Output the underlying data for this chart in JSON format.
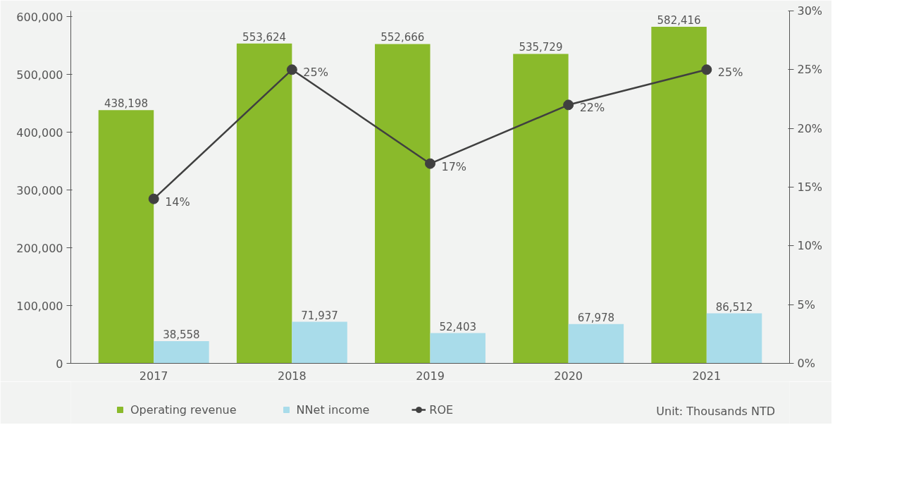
{
  "chart_data": {
    "type": "bar",
    "categories": [
      "2017",
      "2018",
      "2019",
      "2020",
      "2021"
    ],
    "series": [
      {
        "name": "Operating revenue",
        "color": "#8aba2b",
        "values": [
          438198,
          553624,
          552666,
          535729,
          582416
        ],
        "value_labels": [
          "438,198",
          "553,624",
          "552,666",
          "535,729",
          "582,416"
        ]
      },
      {
        "name": "NNet income",
        "color": "#a9dcea",
        "values": [
          38558,
          71937,
          52403,
          67978,
          86512
        ],
        "value_labels": [
          "38,558",
          "71,937",
          "52,403",
          "67,978",
          "86,512"
        ]
      },
      {
        "name": "ROE",
        "type": "line",
        "axis": "y2",
        "color": "#404040",
        "marker": "circle",
        "values": [
          14,
          25,
          17,
          22,
          25
        ],
        "value_labels": [
          "14%",
          "25%",
          "17%",
          "22%",
          "25%"
        ]
      }
    ],
    "ylim": [
      0,
      610000
    ],
    "yticks": [
      {
        "value": 0,
        "label": "0"
      },
      {
        "value": 100000,
        "label": "100,000"
      },
      {
        "value": 200000,
        "label": "200,000"
      },
      {
        "value": 300000,
        "label": "300,000"
      },
      {
        "value": 400000,
        "label": "400,000"
      },
      {
        "value": 500000,
        "label": "500,000"
      },
      {
        "value": 600000,
        "label": "600,000"
      }
    ],
    "y2lim": [
      0,
      30
    ],
    "y2ticks": [
      {
        "value": 0,
        "label": "0%"
      },
      {
        "value": 5,
        "label": "5%"
      },
      {
        "value": 10,
        "label": "10%"
      },
      {
        "value": 15,
        "label": "15%"
      },
      {
        "value": 20,
        "label": "20%"
      },
      {
        "value": 25,
        "label": "25%"
      },
      {
        "value": 30,
        "label": "30%"
      }
    ],
    "annotations": [
      "Unit: Thousands NTD"
    ],
    "legend": "bottom",
    "grid": false
  }
}
